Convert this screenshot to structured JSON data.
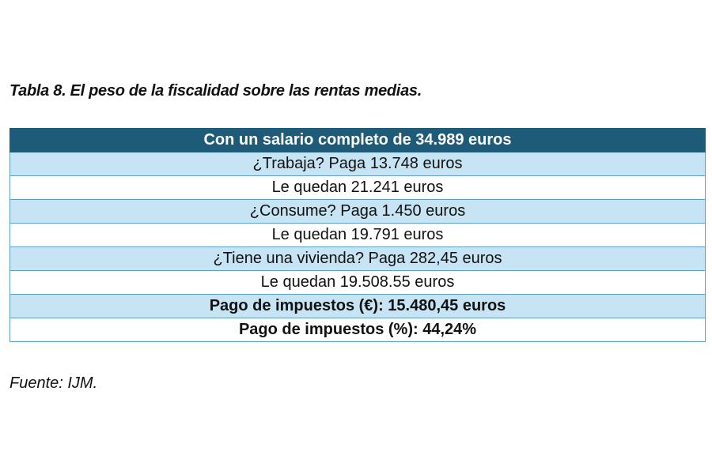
{
  "caption": "Tabla 8. El peso de la fiscalidad sobre las rentas medias.",
  "table": {
    "header": "Con un salario completo de 34.989 euros",
    "rows": [
      "¿Trabaja? Paga 13.748 euros",
      "Le quedan 21.241 euros",
      "¿Consume? Paga 1.450 euros",
      "Le quedan 19.791 euros",
      "¿Tiene una vivienda? Paga 282,45 euros",
      "Le quedan 19.508.55 euros",
      "Pago de impuestos (€): 15.480,45 euros",
      "Pago de impuestos (%): 44,24%"
    ]
  },
  "source": "Fuente: IJM.",
  "colors": {
    "header_bg": "#1d5b78",
    "stripe_bg": "#c6e4f4",
    "border": "#5aa0c8"
  }
}
